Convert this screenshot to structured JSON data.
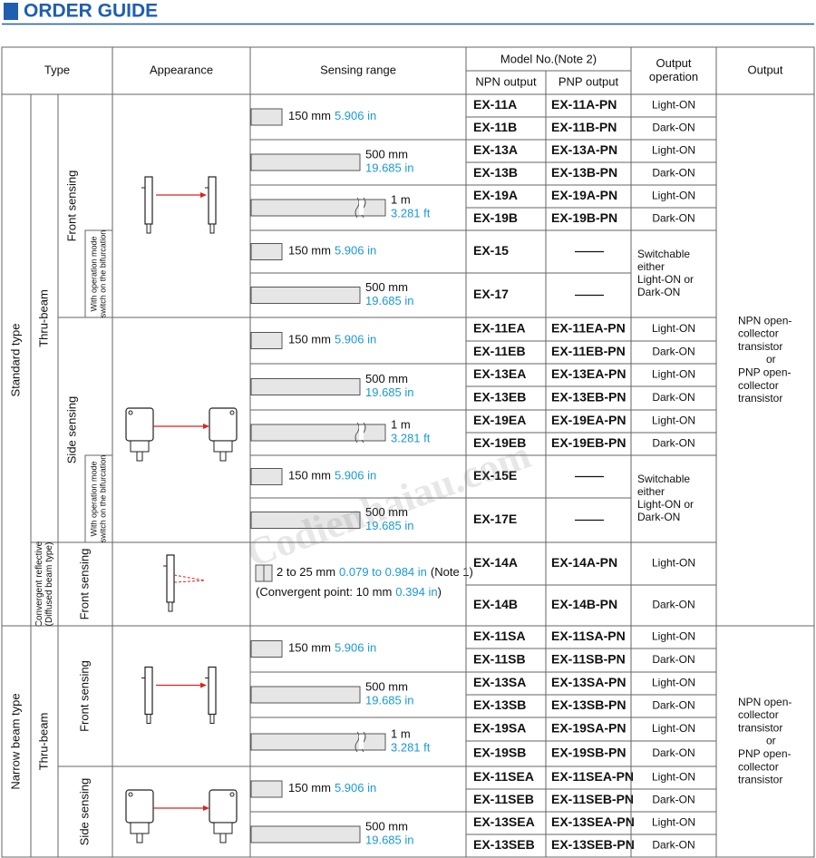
{
  "title": "ORDER GUIDE",
  "header": {
    "type": "Type",
    "appearance": "Appearance",
    "sensing_range": "Sensing range",
    "model_no": "Model No.(Note 2)",
    "npn": "NPN output",
    "pnp": "PNP output",
    "output_operation": [
      "Output",
      "operation"
    ],
    "output": "Output"
  },
  "type_level1": [
    "Standard type",
    "Narrow beam type"
  ],
  "type_level2": [
    [
      "Thru-beam"
    ],
    [
      "Convergent reflective",
      "(Diffused beam type)"
    ],
    [
      "Thru-beam"
    ]
  ],
  "type_level3": [
    "Front sensing",
    "Side sensing",
    "Front sensing",
    "Front sensing",
    "Side sensing"
  ],
  "mode_notes": [
    [
      "With operation mode",
      "switch on the bifurcation"
    ],
    [
      "With operation mode",
      "switch on the bifurcation"
    ]
  ],
  "rows": [
    {
      "npn": "EX-11A",
      "pnp": "EX-11A-PN",
      "operation": [
        "Light-ON"
      ]
    },
    {
      "npn": "EX-11B",
      "pnp": "EX-11B-PN",
      "operation": [
        "Dark-ON"
      ]
    },
    {
      "npn": "EX-13A",
      "pnp": "EX-13A-PN",
      "operation": [
        "Light-ON"
      ]
    },
    {
      "npn": "EX-13B",
      "pnp": "EX-13B-PN",
      "operation": [
        "Dark-ON"
      ]
    },
    {
      "npn": "EX-19A",
      "pnp": "EX-19A-PN",
      "operation": [
        "Light-ON"
      ]
    },
    {
      "npn": "EX-19B",
      "pnp": "EX-19B-PN",
      "operation": [
        "Dark-ON"
      ]
    },
    {
      "npn": "EX-15",
      "pnp": null,
      "operation": [
        "Switchable",
        "either",
        "Light-ON or",
        "Dark-ON"
      ]
    },
    {
      "npn": "EX-17",
      "pnp": null,
      "operation": null
    },
    {
      "npn": "EX-11EA",
      "pnp": "EX-11EA-PN",
      "operation": [
        "Light-ON"
      ]
    },
    {
      "npn": "EX-11EB",
      "pnp": "EX-11EB-PN",
      "operation": [
        "Dark-ON"
      ]
    },
    {
      "npn": "EX-13EA",
      "pnp": "EX-13EA-PN",
      "operation": [
        "Light-ON"
      ]
    },
    {
      "npn": "EX-13EB",
      "pnp": "EX-13EB-PN",
      "operation": [
        "Dark-ON"
      ]
    },
    {
      "npn": "EX-19EA",
      "pnp": "EX-19EA-PN",
      "operation": [
        "Light-ON"
      ]
    },
    {
      "npn": "EX-19EB",
      "pnp": "EX-19EB-PN",
      "operation": [
        "Dark-ON"
      ]
    },
    {
      "npn": "EX-15E",
      "pnp": null,
      "operation": [
        "Switchable",
        "either",
        "Light-ON or",
        "Dark-ON"
      ]
    },
    {
      "npn": "EX-17E",
      "pnp": null,
      "operation": null
    },
    {
      "npn": "EX-14A",
      "pnp": "EX-14A-PN",
      "operation": [
        "Light-ON"
      ]
    },
    {
      "npn": "EX-14B",
      "pnp": "EX-14B-PN",
      "operation": [
        "Dark-ON"
      ]
    },
    {
      "npn": "EX-11SA",
      "pnp": "EX-11SA-PN",
      "operation": [
        "Light-ON"
      ]
    },
    {
      "npn": "EX-11SB",
      "pnp": "EX-11SB-PN",
      "operation": [
        "Dark-ON"
      ]
    },
    {
      "npn": "EX-13SA",
      "pnp": "EX-13SA-PN",
      "operation": [
        "Light-ON"
      ]
    },
    {
      "npn": "EX-13SB",
      "pnp": "EX-13SB-PN",
      "operation": [
        "Dark-ON"
      ]
    },
    {
      "npn": "EX-19SA",
      "pnp": "EX-19SA-PN",
      "operation": [
        "Light-ON"
      ]
    },
    {
      "npn": "EX-19SB",
      "pnp": "EX-19SB-PN",
      "operation": [
        "Dark-ON"
      ]
    },
    {
      "npn": "EX-11SEA",
      "pnp": "EX-11SEA-PN",
      "operation": [
        "Light-ON"
      ]
    },
    {
      "npn": "EX-11SEB",
      "pnp": "EX-11SEB-PN",
      "operation": [
        "Dark-ON"
      ]
    },
    {
      "npn": "EX-13SEA",
      "pnp": "EX-13SEA-PN",
      "operation": [
        "Light-ON"
      ]
    },
    {
      "npn": "EX-13SEB",
      "pnp": "EX-13SEB-PN",
      "operation": [
        "Dark-ON"
      ]
    }
  ],
  "ranges": [
    {
      "metric": "150 mm",
      "imperial": "5.906 in"
    },
    {
      "metric": "500 mm",
      "imperial": "19.685 in"
    },
    {
      "metric": "1 m",
      "imperial": "3.281 ft"
    },
    {
      "metric": "150 mm",
      "imperial": "5.906 in"
    },
    {
      "metric": "500 mm",
      "imperial": "19.685 in"
    },
    {
      "metric": "150 mm",
      "imperial": "5.906 in"
    },
    {
      "metric": "500 mm",
      "imperial": "19.685 in"
    },
    {
      "metric": "1 m",
      "imperial": "3.281 ft"
    },
    {
      "metric": "150 mm",
      "imperial": "5.906 in"
    },
    {
      "metric": "500 mm",
      "imperial": "19.685 in"
    },
    {
      "metric": "2 to 25 mm",
      "imperial": "0.079 to 0.984 in",
      "note": "(Note 1)",
      "point": "(Convergent point: 10 mm",
      "point_imperial": "0.394 in",
      "point_end": ")"
    },
    {
      "metric": "150 mm",
      "imperial": "5.906 in"
    },
    {
      "metric": "500 mm",
      "imperial": "19.685 in"
    },
    {
      "metric": "1 m",
      "imperial": "3.281 ft"
    },
    {
      "metric": "150 mm",
      "imperial": "5.906 in"
    },
    {
      "metric": "500 mm",
      "imperial": "19.685 in"
    }
  ],
  "outputs": [
    [
      "NPN open-",
      "collector",
      "transistor",
      "or",
      "PNP open-",
      "collector",
      "transistor"
    ],
    [
      "NPN open-",
      "collector",
      "transistor",
      "or",
      "PNP open-",
      "collector",
      "transistor"
    ]
  ],
  "watermark": "Codienhaiau.com"
}
